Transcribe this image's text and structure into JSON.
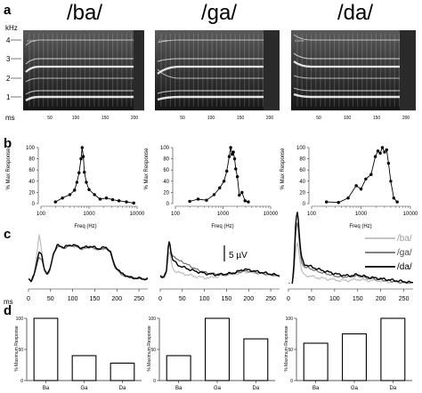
{
  "panel_letters": [
    "a",
    "b",
    "c",
    "d"
  ],
  "titles": [
    "/ba/",
    "/ga/",
    "/da/"
  ],
  "spectro": {
    "ylabel": "kHz",
    "yticks": [
      "4",
      "3",
      "2",
      "1"
    ],
    "inner_label": "4 kHz",
    "xticks": [
      "50",
      "100",
      "150",
      "200"
    ],
    "unit": "ms"
  },
  "c_ms_label": "ms",
  "c_scale_label": "5 µV",
  "c_legend": [
    "/ba/",
    "/ga/",
    "/da/"
  ],
  "colors": {
    "ba": "#bdbdbd",
    "ga": "#6f6f6f",
    "da": "#000000"
  },
  "chart_data": [
    {
      "type": "line",
      "panel": "b",
      "stimulus": "/ba/",
      "xlabel": "Freq (Hz)",
      "ylabel": "% Max Response",
      "xscale": "log",
      "xlim": [
        100,
        10000
      ],
      "ylim": [
        0,
        100
      ],
      "xticks": [
        "100",
        "1000",
        "10000"
      ],
      "yticks": [
        "0",
        "20",
        "40",
        "60",
        "80",
        "100"
      ],
      "x": [
        200,
        280,
        400,
        500,
        560,
        620,
        680,
        720,
        760,
        800,
        880,
        1000,
        1300,
        1700,
        2300,
        3100,
        4200,
        6000,
        8500
      ],
      "y": [
        3,
        10,
        16,
        24,
        38,
        55,
        80,
        100,
        84,
        56,
        38,
        25,
        16,
        8,
        10,
        7,
        5,
        3,
        1
      ]
    },
    {
      "type": "line",
      "panel": "b",
      "stimulus": "/ga/",
      "xlabel": "Freq (Hz)",
      "ylabel": "% Max Response",
      "xscale": "log",
      "xlim": [
        100,
        10000
      ],
      "ylim": [
        0,
        100
      ],
      "xticks": [
        "100",
        "1000",
        "10000"
      ],
      "yticks": [
        "0",
        "20",
        "40",
        "60",
        "80",
        "100"
      ],
      "x": [
        200,
        300,
        450,
        650,
        850,
        1050,
        1200,
        1350,
        1450,
        1550,
        1650,
        1750,
        1850,
        2000,
        2200,
        2500,
        2900,
        3400
      ],
      "y": [
        4,
        8,
        6,
        16,
        28,
        40,
        58,
        84,
        100,
        88,
        92,
        80,
        62,
        48,
        15,
        20,
        5,
        3
      ]
    },
    {
      "type": "line",
      "panel": "b",
      "stimulus": "/da/",
      "xlabel": "Freq (Hz)",
      "ylabel": "% Max Response",
      "xscale": "log",
      "xlim": [
        100,
        10000
      ],
      "ylim": [
        0,
        100
      ],
      "xticks": [
        "100",
        "1000",
        "10000"
      ],
      "yticks": [
        "0",
        "20",
        "40",
        "60",
        "80",
        "100"
      ],
      "x": [
        200,
        350,
        550,
        800,
        1000,
        1250,
        1600,
        1950,
        2200,
        2450,
        2700,
        3000,
        3300,
        3600,
        4000,
        4600,
        5400
      ],
      "y": [
        3,
        2,
        10,
        32,
        26,
        44,
        52,
        84,
        94,
        90,
        100,
        92,
        96,
        72,
        40,
        10,
        3
      ]
    },
    {
      "type": "line",
      "panel": "c",
      "stimulus": "/ba/",
      "xlabel": "ms",
      "xlim": [
        0,
        270
      ],
      "xticks": [
        "0",
        "50",
        "100",
        "150",
        "200",
        "250"
      ],
      "series": [
        {
          "name": "/ba/",
          "x": [
            0,
            6,
            12,
            18,
            24,
            30,
            36,
            42,
            48,
            56,
            65,
            80,
            100,
            120,
            140,
            160,
            175,
            185,
            195,
            210,
            230,
            250,
            270
          ],
          "y": [
            0.0,
            -0.3,
            0.6,
            2.5,
            5.2,
            3.5,
            1.0,
            0.5,
            1.0,
            2.9,
            3.9,
            3.7,
            4.0,
            3.6,
            3.8,
            3.5,
            3.7,
            3.2,
            1.5,
            0.6,
            0.2,
            0.1,
            0.0
          ]
        },
        {
          "name": "/ga/",
          "x": [
            0,
            6,
            12,
            18,
            24,
            30,
            36,
            42,
            48,
            56,
            65,
            80,
            100,
            120,
            140,
            160,
            175,
            185,
            195,
            210,
            230,
            250,
            270
          ],
          "y": [
            0.0,
            -0.3,
            0.4,
            1.5,
            2.6,
            2.4,
            1.1,
            0.6,
            1.0,
            2.9,
            3.9,
            3.7,
            4.0,
            3.6,
            3.8,
            3.5,
            3.7,
            3.2,
            1.5,
            0.6,
            0.2,
            0.1,
            0.0
          ]
        },
        {
          "name": "/da/",
          "x": [
            0,
            6,
            12,
            18,
            24,
            30,
            36,
            42,
            48,
            56,
            65,
            80,
            100,
            120,
            140,
            160,
            175,
            185,
            195,
            210,
            230,
            250,
            270
          ],
          "y": [
            0.0,
            -0.3,
            0.5,
            1.8,
            3.2,
            2.8,
            1.2,
            0.6,
            1.0,
            3.0,
            4.0,
            3.8,
            4.1,
            3.7,
            3.9,
            3.6,
            3.8,
            3.3,
            1.6,
            0.7,
            0.2,
            0.1,
            0.0
          ]
        }
      ]
    },
    {
      "type": "line",
      "panel": "c",
      "stimulus": "/ga/",
      "xlabel": "ms",
      "xlim": [
        0,
        270
      ],
      "xticks": [
        "0",
        "50",
        "100",
        "150",
        "200",
        "250"
      ],
      "series": [
        {
          "name": "/ba/",
          "x": [
            0,
            8,
            14,
            18,
            21,
            24,
            28,
            32,
            38,
            45,
            55,
            70,
            90,
            110,
            130,
            150,
            170,
            190,
            210,
            230,
            250,
            270
          ],
          "y": [
            0.0,
            -0.2,
            0.3,
            2.4,
            3.1,
            2.0,
            1.0,
            0.6,
            0.5,
            0.3,
            0.2,
            0.0,
            -0.2,
            -0.3,
            -0.1,
            0.1,
            0.2,
            0.5,
            0.4,
            0.2,
            0.1,
            0.0
          ]
        },
        {
          "name": "/ga/",
          "x": [
            0,
            8,
            14,
            18,
            21,
            24,
            28,
            32,
            38,
            45,
            55,
            70,
            90,
            110,
            130,
            150,
            170,
            190,
            210,
            230,
            250,
            270
          ],
          "y": [
            0.0,
            -0.2,
            0.6,
            3.4,
            4.4,
            3.1,
            2.3,
            2.4,
            2.1,
            1.8,
            1.6,
            1.1,
            0.6,
            0.3,
            0.2,
            0.2,
            0.3,
            0.6,
            0.5,
            0.3,
            0.1,
            0.0
          ]
        },
        {
          "name": "/da/",
          "x": [
            0,
            8,
            14,
            18,
            21,
            24,
            28,
            32,
            38,
            45,
            55,
            70,
            90,
            110,
            130,
            150,
            170,
            190,
            210,
            230,
            250,
            270
          ],
          "y": [
            0.0,
            -0.2,
            0.5,
            3.5,
            4.6,
            3.0,
            2.0,
            1.8,
            1.4,
            1.2,
            1.0,
            0.7,
            0.4,
            0.2,
            0.1,
            0.2,
            0.4,
            0.8,
            0.6,
            0.4,
            0.2,
            0.0
          ]
        }
      ]
    },
    {
      "type": "line",
      "panel": "c",
      "stimulus": "/da/",
      "xlabel": "ms",
      "xlim": [
        0,
        270
      ],
      "xticks": [
        "0",
        "50",
        "100",
        "150",
        "200",
        "250"
      ],
      "series": [
        {
          "name": "/ba/",
          "x": [
            0,
            8,
            12,
            16,
            20,
            24,
            28,
            34,
            42,
            55,
            70,
            90,
            110,
            130,
            150,
            170,
            190,
            210,
            230,
            250,
            270
          ],
          "y": [
            0.0,
            -0.3,
            0.8,
            3.0,
            3.6,
            2.2,
            1.0,
            0.7,
            0.6,
            0.5,
            0.4,
            0.3,
            0.2,
            0.2,
            0.3,
            0.2,
            0.2,
            0.1,
            0.1,
            0.0,
            0.0
          ]
        },
        {
          "name": "/ga/",
          "x": [
            0,
            8,
            12,
            16,
            20,
            24,
            28,
            34,
            42,
            55,
            70,
            90,
            110,
            130,
            150,
            170,
            190,
            210,
            230,
            250,
            270
          ],
          "y": [
            0.0,
            -0.3,
            1.2,
            4.6,
            5.4,
            3.2,
            1.8,
            1.4,
            1.3,
            1.1,
            0.9,
            0.7,
            0.5,
            0.5,
            0.6,
            0.4,
            0.3,
            0.2,
            0.1,
            0.0,
            0.0
          ]
        },
        {
          "name": "/da/",
          "x": [
            0,
            8,
            12,
            16,
            20,
            24,
            28,
            34,
            42,
            55,
            70,
            90,
            110,
            130,
            150,
            170,
            190,
            210,
            230,
            250,
            270
          ],
          "y": [
            0.0,
            -0.3,
            1.6,
            5.6,
            6.3,
            3.8,
            2.2,
            1.6,
            1.5,
            1.3,
            1.1,
            0.9,
            0.7,
            0.6,
            0.7,
            0.5,
            0.4,
            0.3,
            0.2,
            0.1,
            0.0
          ]
        }
      ]
    },
    {
      "type": "bar",
      "panel": "d",
      "stimulus": "/ba/",
      "ylabel": "% Maximum Response",
      "ylim": [
        0,
        100
      ],
      "yticks": [
        "0",
        "50",
        "100"
      ],
      "categories": [
        "Ba",
        "Ga",
        "Da"
      ],
      "values": [
        100,
        40,
        28
      ]
    },
    {
      "type": "bar",
      "panel": "d",
      "stimulus": "/ga/",
      "ylabel": "% Maximum Response",
      "ylim": [
        0,
        100
      ],
      "yticks": [
        "0",
        "50",
        "100"
      ],
      "categories": [
        "Ba",
        "Ga",
        "Da"
      ],
      "values": [
        40,
        100,
        67
      ]
    },
    {
      "type": "bar",
      "panel": "d",
      "stimulus": "/da/",
      "ylabel": "% Maximum Response",
      "ylim": [
        0,
        100
      ],
      "yticks": [
        "0",
        "50",
        "100"
      ],
      "categories": [
        "Ba",
        "Ga",
        "Da"
      ],
      "values": [
        60,
        75,
        100
      ]
    }
  ]
}
